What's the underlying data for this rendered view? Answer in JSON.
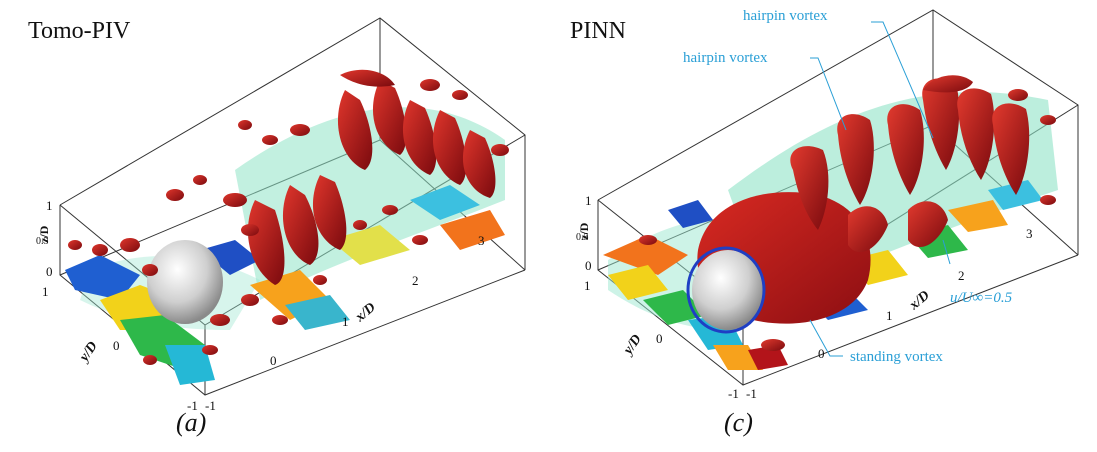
{
  "panel_a": {
    "title": "Tomo-PIV",
    "label": "(a)",
    "axes": {
      "xlabel": "x/D",
      "ylabel": "y/D",
      "zlabel": "z/D",
      "x_ticks": [
        "0",
        "1",
        "2",
        "3"
      ],
      "y_ticks": [
        "-1",
        "0",
        "1"
      ],
      "z_ticks": [
        "0",
        "0.5",
        "1"
      ],
      "extra_ticks": [
        "-1"
      ]
    }
  },
  "panel_c": {
    "title": "PINN",
    "label": "(c)",
    "axes": {
      "xlabel": "x/D",
      "ylabel": "y/D",
      "zlabel": "z/D",
      "x_ticks": [
        "0",
        "1",
        "2",
        "3"
      ],
      "y_ticks": [
        "-1",
        "0",
        "1"
      ],
      "z_ticks": [
        "0",
        "0.5",
        "1"
      ],
      "extra_ticks": [
        "-1"
      ]
    },
    "annotations": {
      "hairpin_top": "hairpin vortex",
      "hairpin_mid": "hairpin vortex",
      "iso": "u/U∞=0.5",
      "standing": "standing vortex"
    }
  },
  "colors": {
    "vortex_red": "#b3141a",
    "vortex_dark": "#7a0a0e",
    "iso_green": "#8fe3c6",
    "sphere": "#d8d8d8",
    "annotation": "#2a9fd6"
  }
}
